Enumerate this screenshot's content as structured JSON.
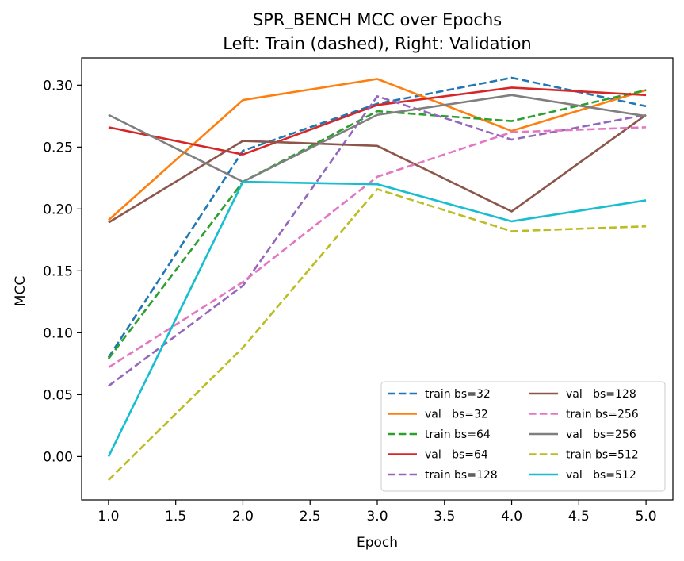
{
  "chart_data": {
    "type": "line",
    "title_line1": "SPR_BENCH MCC over Epochs",
    "title_line2": "Left: Train (dashed), Right: Validation",
    "xlabel": "Epoch",
    "ylabel": "MCC",
    "xlim": [
      0.8,
      5.2
    ],
    "ylim": [
      -0.035,
      0.322
    ],
    "x_ticks": [
      "1.0",
      "1.5",
      "2.0",
      "2.5",
      "3.0",
      "3.5",
      "4.0",
      "4.5",
      "5.0"
    ],
    "y_ticks": [
      "0.00",
      "0.05",
      "0.10",
      "0.15",
      "0.20",
      "0.25",
      "0.30"
    ],
    "grid": false,
    "legend_position": "lower-right",
    "x": [
      1,
      2,
      3,
      4,
      5
    ],
    "series": [
      {
        "name": "train bs=32",
        "legend_label": "train bs=32",
        "style": "dashed",
        "color": "#1f77b4",
        "values": [
          0.08,
          0.247,
          0.285,
          0.306,
          0.283
        ]
      },
      {
        "name": "val bs=32",
        "legend_label": "val   bs=32",
        "style": "solid",
        "color": "#ff7f0e",
        "values": [
          0.191,
          0.288,
          0.305,
          0.263,
          0.296
        ]
      },
      {
        "name": "train bs=64",
        "legend_label": "train bs=64",
        "style": "dashed",
        "color": "#2ca02c",
        "values": [
          0.079,
          0.222,
          0.279,
          0.271,
          0.296
        ]
      },
      {
        "name": "val bs=64",
        "legend_label": "val   bs=64",
        "style": "solid",
        "color": "#d62728",
        "values": [
          0.266,
          0.244,
          0.284,
          0.298,
          0.292
        ]
      },
      {
        "name": "train bs=128",
        "legend_label": "train bs=128",
        "style": "dashed",
        "color": "#9467bd",
        "values": [
          0.057,
          0.138,
          0.291,
          0.256,
          0.276
        ]
      },
      {
        "name": "val bs=128",
        "legend_label": "val   bs=128",
        "style": "solid",
        "color": "#8c564b",
        "values": [
          0.189,
          0.255,
          0.251,
          0.198,
          0.276
        ]
      },
      {
        "name": "train bs=256",
        "legend_label": "train bs=256",
        "style": "dashed",
        "color": "#e377c2",
        "values": [
          0.072,
          0.141,
          0.226,
          0.262,
          0.266
        ]
      },
      {
        "name": "val bs=256",
        "legend_label": "val   bs=256",
        "style": "solid",
        "color": "#7f7f7f",
        "values": [
          0.276,
          0.222,
          0.276,
          0.292,
          0.275
        ]
      },
      {
        "name": "train bs=512",
        "legend_label": "train bs=512",
        "style": "dashed",
        "color": "#bcbd22",
        "values": [
          -0.019,
          0.088,
          0.216,
          0.182,
          0.186
        ]
      },
      {
        "name": "val bs=512",
        "legend_label": "val   bs=512",
        "style": "solid",
        "color": "#17becf",
        "values": [
          0.0,
          0.222,
          0.22,
          0.19,
          0.207
        ]
      }
    ]
  }
}
